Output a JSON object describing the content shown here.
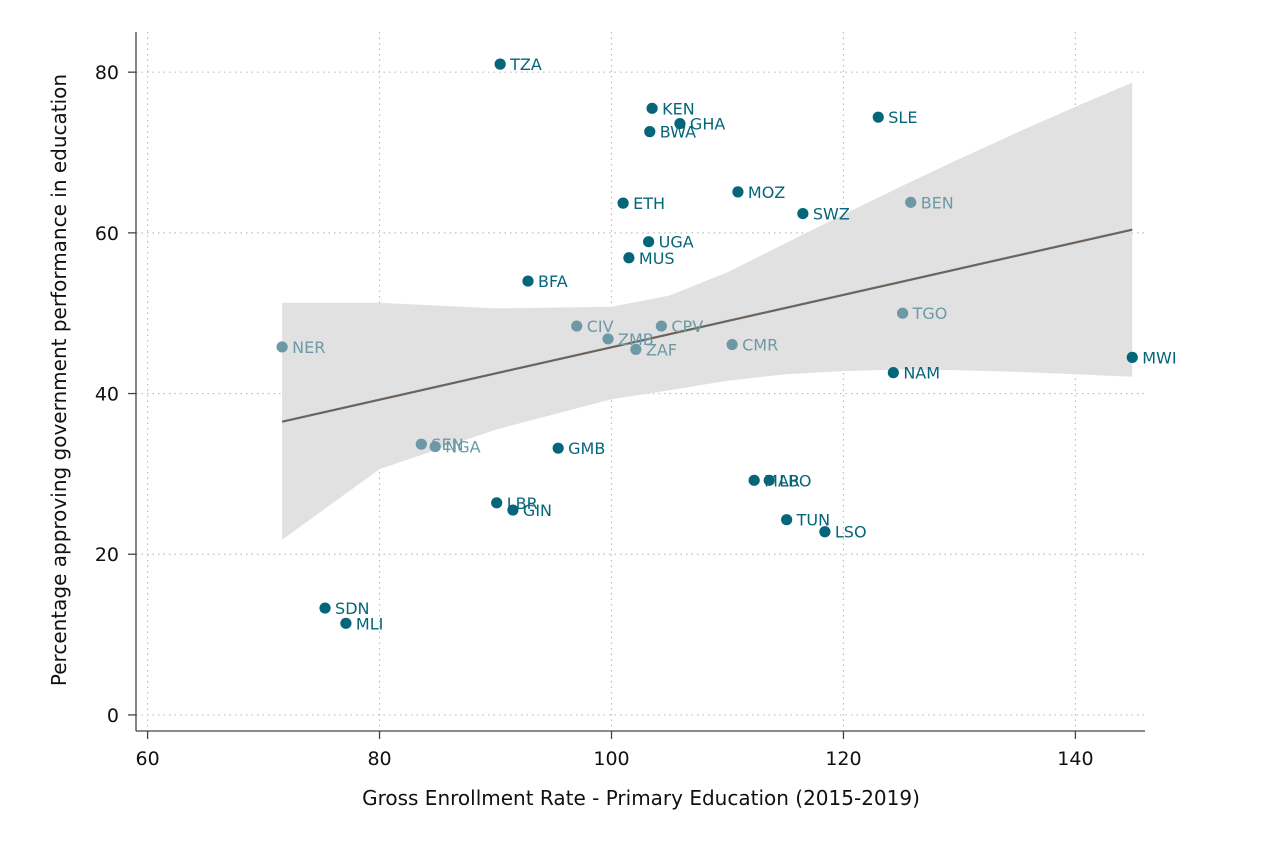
{
  "chart_data": {
    "type": "scatter",
    "title": "",
    "xlabel": "Gross Enrollment Rate - Primary Education (2015-2019)",
    "ylabel": "Percentage approving government performance in education",
    "xlim": [
      59,
      146
    ],
    "ylim": [
      -2,
      85
    ],
    "xticks": [
      60,
      80,
      100,
      120,
      140
    ],
    "yticks": [
      0,
      20,
      40,
      60,
      80
    ],
    "grid": true,
    "colors": {
      "dark": "#05667a",
      "light": "#6c99a5",
      "ci": "#e1e1e1",
      "fit": "#6c635c",
      "grid": "#bdbdbd",
      "axis": "#444444"
    },
    "points": [
      {
        "label": "TZA",
        "x": 90.4,
        "y": 81.0,
        "group": "dark"
      },
      {
        "label": "KEN",
        "x": 103.5,
        "y": 75.5,
        "group": "dark"
      },
      {
        "label": "GHA",
        "x": 105.9,
        "y": 73.6,
        "group": "dark"
      },
      {
        "label": "BWA",
        "x": 103.3,
        "y": 72.6,
        "group": "dark"
      },
      {
        "label": "SLE",
        "x": 123.0,
        "y": 74.4,
        "group": "dark"
      },
      {
        "label": "ETH",
        "x": 101.0,
        "y": 63.7,
        "group": "dark"
      },
      {
        "label": "MOZ",
        "x": 110.9,
        "y": 65.1,
        "group": "dark"
      },
      {
        "label": "SWZ",
        "x": 116.5,
        "y": 62.4,
        "group": "dark"
      },
      {
        "label": "BEN",
        "x": 125.8,
        "y": 63.8,
        "group": "light"
      },
      {
        "label": "UGA",
        "x": 103.2,
        "y": 58.9,
        "group": "dark"
      },
      {
        "label": "MUS",
        "x": 101.5,
        "y": 56.9,
        "group": "dark"
      },
      {
        "label": "BFA",
        "x": 92.8,
        "y": 54.0,
        "group": "dark"
      },
      {
        "label": "CIV",
        "x": 97.0,
        "y": 48.4,
        "group": "light"
      },
      {
        "label": "CPV",
        "x": 104.3,
        "y": 48.4,
        "group": "light"
      },
      {
        "label": "ZMB",
        "x": 99.7,
        "y": 46.8,
        "group": "light"
      },
      {
        "label": "ZAF",
        "x": 102.1,
        "y": 45.5,
        "group": "light"
      },
      {
        "label": "CMR",
        "x": 110.4,
        "y": 46.1,
        "group": "light"
      },
      {
        "label": "TGO",
        "x": 125.1,
        "y": 50.0,
        "group": "light"
      },
      {
        "label": "NER",
        "x": 71.6,
        "y": 45.8,
        "group": "light"
      },
      {
        "label": "NAM",
        "x": 124.3,
        "y": 42.6,
        "group": "dark"
      },
      {
        "label": "MWI",
        "x": 144.9,
        "y": 44.5,
        "group": "dark"
      },
      {
        "label": "SEN",
        "x": 83.6,
        "y": 33.7,
        "group": "light"
      },
      {
        "label": "NGA",
        "x": 84.8,
        "y": 33.4,
        "group": "light"
      },
      {
        "label": "GMB",
        "x": 95.4,
        "y": 33.2,
        "group": "dark"
      },
      {
        "label": "MAR",
        "x": 112.3,
        "y": 29.2,
        "group": "dark"
      },
      {
        "label": "LBO",
        "x": 113.6,
        "y": 29.2,
        "group": "dark"
      },
      {
        "label": "LBR",
        "x": 90.1,
        "y": 26.4,
        "group": "dark"
      },
      {
        "label": "GIN",
        "x": 91.5,
        "y": 25.5,
        "group": "dark"
      },
      {
        "label": "TUN",
        "x": 115.1,
        "y": 24.3,
        "group": "dark"
      },
      {
        "label": "LSO",
        "x": 118.4,
        "y": 22.8,
        "group": "dark"
      },
      {
        "label": "SDN",
        "x": 75.3,
        "y": 13.3,
        "group": "dark"
      },
      {
        "label": "MLI",
        "x": 77.1,
        "y": 11.4,
        "group": "dark"
      }
    ],
    "fit_line": {
      "x": [
        71.6,
        144.9
      ],
      "y": [
        36.5,
        60.4
      ]
    },
    "confidence_band": {
      "x": [
        71.6,
        80,
        90,
        100,
        105,
        110,
        115,
        120,
        125,
        130,
        135,
        140,
        144.9
      ],
      "upper": [
        51.3,
        51.3,
        50.6,
        50.8,
        52.2,
        55.1,
        58.7,
        62.3,
        65.8,
        69.2,
        72.5,
        75.7,
        78.7
      ],
      "lower": [
        21.8,
        30.6,
        35.5,
        39.3,
        40.4,
        41.6,
        42.4,
        42.8,
        43.0,
        42.9,
        42.7,
        42.4,
        42.1
      ]
    }
  }
}
